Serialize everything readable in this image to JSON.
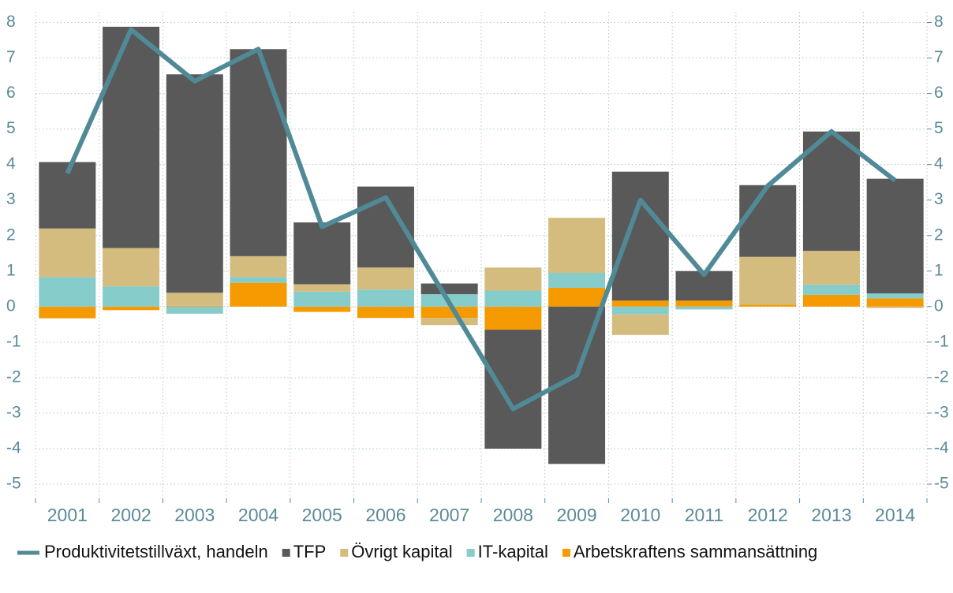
{
  "chart_data": {
    "type": "bar",
    "categories": [
      "2001",
      "2002",
      "2003",
      "2004",
      "2005",
      "2006",
      "2007",
      "2008",
      "2009",
      "2010",
      "2011",
      "2012",
      "2013",
      "2014"
    ],
    "series": [
      {
        "name": "Produktivitetstillväxt, handeln",
        "type": "line",
        "color": "#4f8a96",
        "values": [
          3.75,
          7.8,
          6.35,
          7.25,
          2.25,
          3.07,
          0.1,
          -2.88,
          -1.93,
          3.0,
          0.9,
          3.4,
          4.93,
          3.55
        ]
      },
      {
        "name": "TFP",
        "color": "#595959",
        "values": [
          1.87,
          6.23,
          6.15,
          5.83,
          1.74,
          2.28,
          0.3,
          -3.35,
          -4.43,
          3.63,
          0.83,
          2.02,
          3.36,
          3.23
        ]
      },
      {
        "name": "Övrigt kapital",
        "color": "#d4bc7f",
        "values": [
          1.37,
          1.08,
          0.37,
          0.59,
          0.21,
          0.62,
          -0.2,
          0.65,
          1.55,
          -0.58,
          0,
          1.35,
          0.95,
          -0.04
        ]
      },
      {
        "name": "IT-kapital",
        "color": "#86cccb",
        "values": [
          0.83,
          0.57,
          -0.2,
          0.16,
          0.42,
          0.48,
          0.35,
          0.45,
          0.42,
          -0.22,
          -0.08,
          0,
          0.29,
          0.14
        ]
      },
      {
        "name": "Arbetskraftens sammansättning",
        "color": "#f59a00",
        "values": [
          -0.33,
          -0.1,
          0.02,
          0.67,
          -0.15,
          -0.32,
          -0.32,
          -0.65,
          0.53,
          0.17,
          0.17,
          0.05,
          0.33,
          0.23
        ]
      }
    ],
    "ylim": [
      -5.4,
      8.3
    ],
    "yticks": [
      -5,
      -4,
      -3,
      -2,
      -1,
      0,
      1,
      2,
      3,
      4,
      5,
      6,
      7,
      8
    ],
    "y2lim": [
      -5.4,
      8.3
    ],
    "y2ticks": [
      -5,
      -4,
      -3,
      -2,
      -1,
      0,
      1,
      2,
      3,
      4,
      5,
      6,
      7,
      8
    ],
    "grid": true,
    "legend": "bottom"
  }
}
